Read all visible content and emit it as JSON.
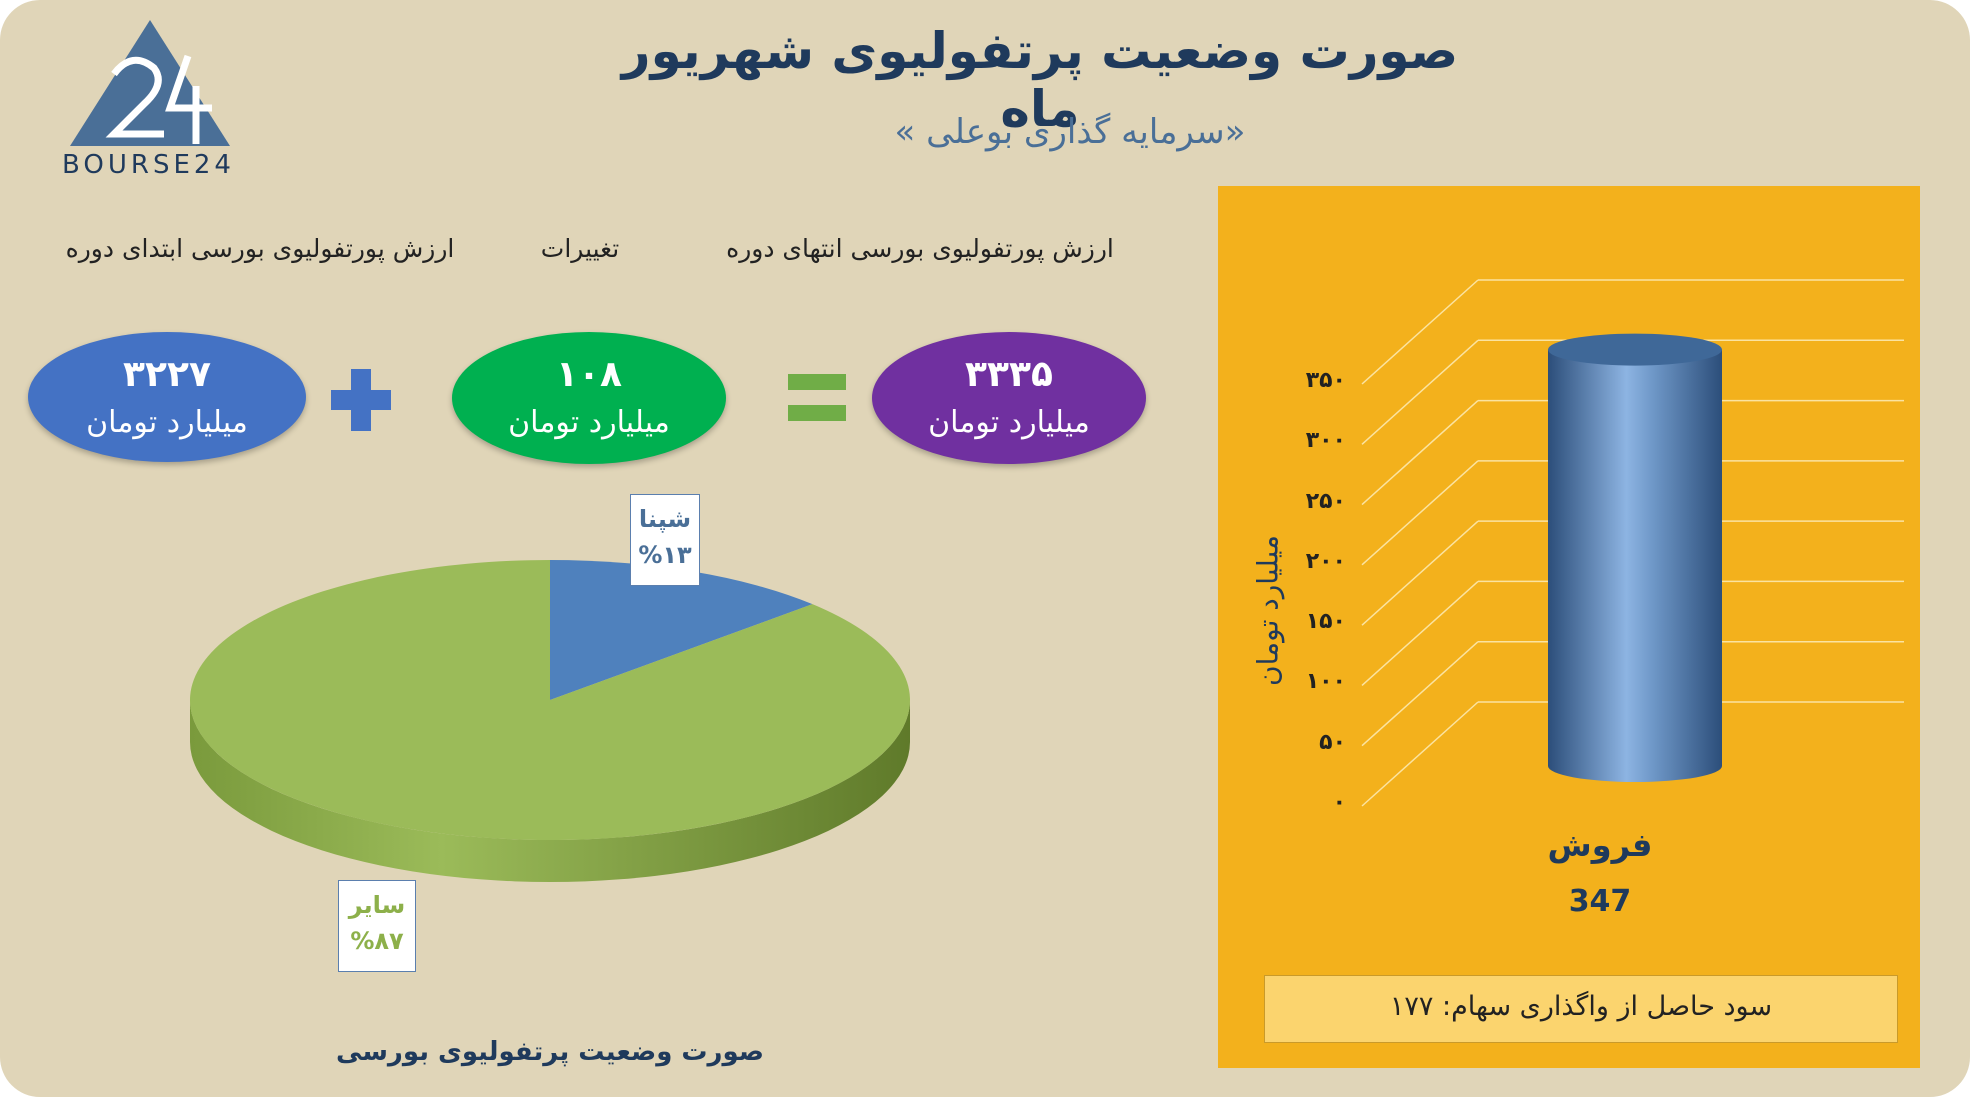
{
  "header": {
    "title": "صورت وضعیت پرتفولیوی شهریور ماه",
    "subtitle": "«سرمایه گذاری بوعلی »",
    "logo_text": "BOURSE24"
  },
  "summary": {
    "end_label": "ارزش پورتفولیوی بورسی انتهای دوره",
    "change_label": "تغییرات",
    "start_label": "ارزش پورتفولیوی بورسی ابتدای دوره",
    "end_value": "۳۳۳۵",
    "change_value": "۱۰۸",
    "start_value": "۳۲۲۷",
    "unit": "میلیارد تومان",
    "colors": {
      "end": "#7030a0",
      "change": "#00b050",
      "start": "#4472c4",
      "plus": "#4472c4",
      "equals": "#70ad47"
    }
  },
  "pie_caption": "صورت وضعیت پرتفولیوی بورسی",
  "bar_panel": {
    "background": "#f3b11c",
    "ylabel": "میلیارد تومان",
    "profit_text": "سود حاصل از واگذاری سهام: ۱۷۷"
  },
  "chart_data": [
    {
      "type": "pie",
      "title": "صورت وضعیت پرتفولیوی بورسی",
      "labels": [
        "شپنا",
        "سایر"
      ],
      "values": [
        13,
        87
      ],
      "display": [
        "%۱۳",
        "%۸۷"
      ],
      "colors": [
        "#4f81bd",
        "#9bbb59"
      ],
      "label_colors": [
        "#4a6f97",
        "#8db04a"
      ]
    },
    {
      "type": "bar",
      "categories": [
        "فروش"
      ],
      "values": [
        347
      ],
      "data_labels": [
        "347"
      ],
      "ylabel": "میلیارد تومان",
      "ylim": [
        0,
        350
      ],
      "yticks": [
        0,
        50,
        100,
        150,
        200,
        250,
        300,
        350
      ],
      "ytick_labels": [
        "۰",
        "۵۰",
        "۱۰۰",
        "۱۵۰",
        "۲۰۰",
        "۲۵۰",
        "۳۰۰",
        "۳۵۰"
      ],
      "grid": true,
      "colors": [
        "#4f81bd"
      ]
    }
  ]
}
